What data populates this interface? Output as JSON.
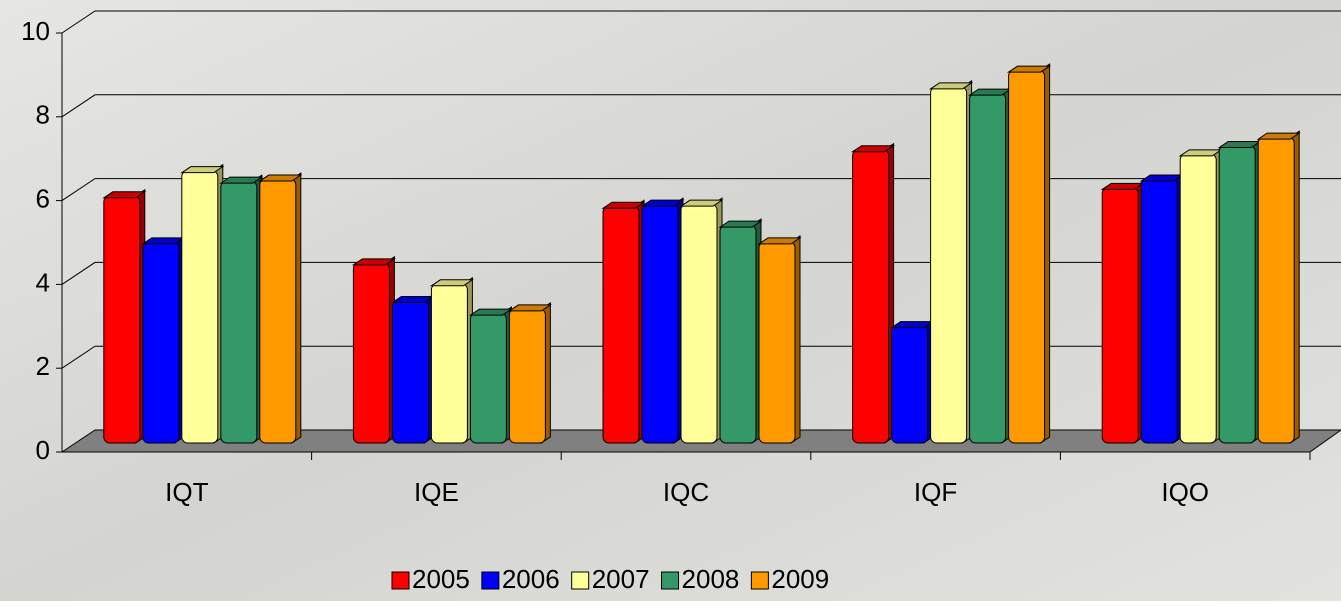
{
  "chart_data": {
    "type": "bar3d",
    "categories": [
      "IQT",
      "IQE",
      "IQC",
      "IQF",
      "IQO"
    ],
    "series": [
      {
        "name": "2005",
        "color": "#ff0000",
        "values": [
          5.9,
          4.3,
          5.65,
          7.0,
          6.1
        ]
      },
      {
        "name": "2006",
        "color": "#0000ff",
        "values": [
          4.8,
          3.4,
          5.7,
          2.8,
          6.3
        ]
      },
      {
        "name": "2007",
        "color": "#ffff99",
        "values": [
          6.5,
          3.8,
          5.7,
          8.5,
          6.9
        ]
      },
      {
        "name": "2008",
        "color": "#339966",
        "values": [
          6.25,
          3.1,
          5.2,
          8.35,
          7.1
        ]
      },
      {
        "name": "2009",
        "color": "#ff9900",
        "values": [
          6.3,
          3.2,
          4.8,
          8.9,
          7.3
        ]
      }
    ],
    "ylim": [
      0,
      10
    ],
    "yticks": [
      0,
      2,
      4,
      6,
      8,
      10
    ],
    "grid": true,
    "legend": "bottom"
  }
}
